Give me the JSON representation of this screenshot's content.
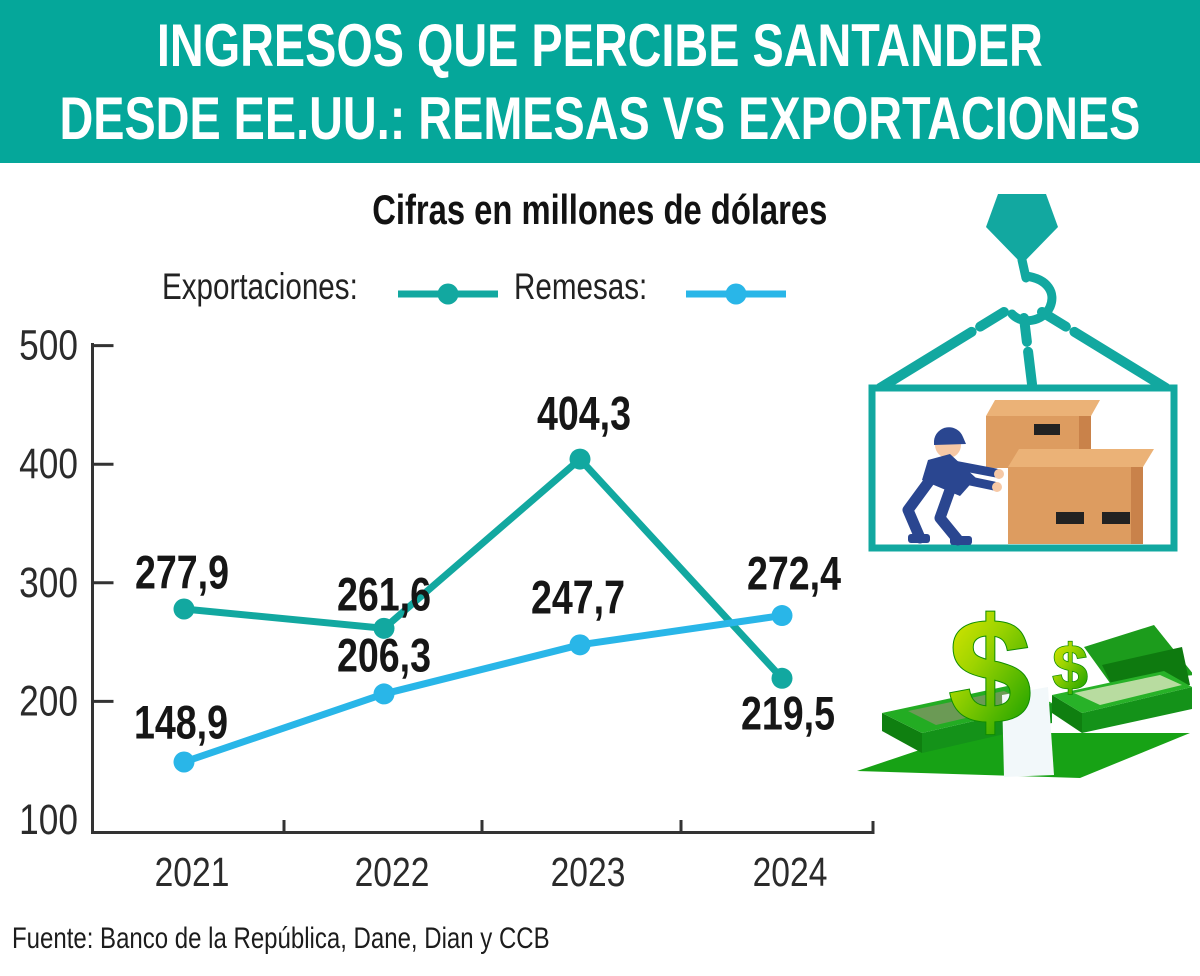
{
  "header": {
    "title_line1": "INGRESOS QUE PERCIBE SANTANDER",
    "title_line2": "DESDE EE.UU.: REMESAS VS EXPORTACIONES"
  },
  "subtitle": "Cifras en millones de dólares",
  "legend": [
    {
      "label": "Exportaciones:",
      "color": "#12A8A0"
    },
    {
      "label": "Remesas:",
      "color": "#29B6E8"
    }
  ],
  "chart_data": {
    "type": "line",
    "title": "Cifras en millones de dólares",
    "categories": [
      "2021",
      "2022",
      "2023",
      "2024"
    ],
    "series": [
      {
        "name": "Exportaciones",
        "color": "#12A8A0",
        "values": [
          277.9,
          261.6,
          404.3,
          219.5
        ]
      },
      {
        "name": "Remesas",
        "color": "#29B6E8",
        "values": [
          148.9,
          206.3,
          247.7,
          272.4
        ]
      }
    ],
    "ylim": [
      100,
      500
    ],
    "yticks": [
      100,
      200,
      300,
      400,
      500
    ],
    "decimal_separator": ",",
    "grid": false,
    "legend_position": "top",
    "units": "millones de dólares"
  },
  "footer": {
    "source": "Fuente: Banco de la República, Dane, Dian y CCB"
  },
  "illustrations": {
    "crane": "crane-hook-lifting-cargo-with-worker-and-boxes",
    "money": "dollar-signs-over-stacks-of-bills"
  },
  "colors": {
    "banner": "#05A79A",
    "axis": "#333333",
    "text": "#1c1c1c",
    "money_green": "#1CA117",
    "box_tan": "#DD9C60"
  }
}
